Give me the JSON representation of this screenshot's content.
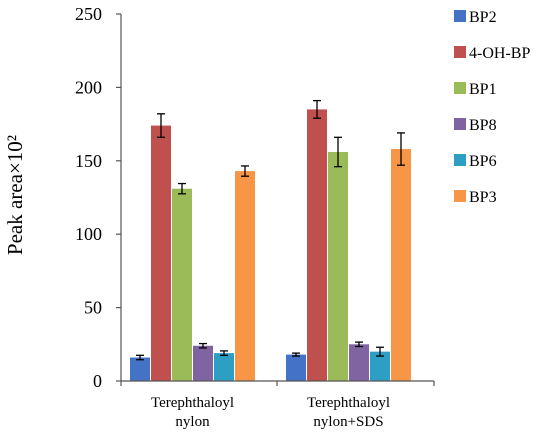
{
  "chart_data": {
    "type": "bar",
    "ylabel": "Peak area×10²",
    "xlabel": "",
    "ylim": [
      0,
      250
    ],
    "yticks": [
      0,
      50,
      100,
      150,
      200,
      250
    ],
    "categories": [
      [
        "Terephthaloyl",
        "nylon"
      ],
      [
        "Terephthaloyl",
        "nylon+SDS"
      ]
    ],
    "series": [
      {
        "name": "BP2",
        "color": "#4472c4",
        "values": [
          16,
          18
        ],
        "errors": [
          1.5,
          1
        ]
      },
      {
        "name": "4-OH-BP",
        "color": "#c0504d",
        "values": [
          174,
          185
        ],
        "errors": [
          8,
          6
        ]
      },
      {
        "name": "BP1",
        "color": "#9bbb59",
        "values": [
          131,
          156
        ],
        "errors": [
          3.5,
          10
        ]
      },
      {
        "name": "BP8",
        "color": "#8064a2",
        "values": [
          24,
          25
        ],
        "errors": [
          1.5,
          1.5
        ]
      },
      {
        "name": "BP6",
        "color": "#2e9fc4",
        "values": [
          19,
          20
        ],
        "errors": [
          1.5,
          3
        ]
      },
      {
        "name": "BP3",
        "color": "#f79646",
        "values": [
          143,
          158
        ],
        "errors": [
          3.5,
          11
        ]
      }
    ],
    "legend_position": "right",
    "grid": false
  }
}
